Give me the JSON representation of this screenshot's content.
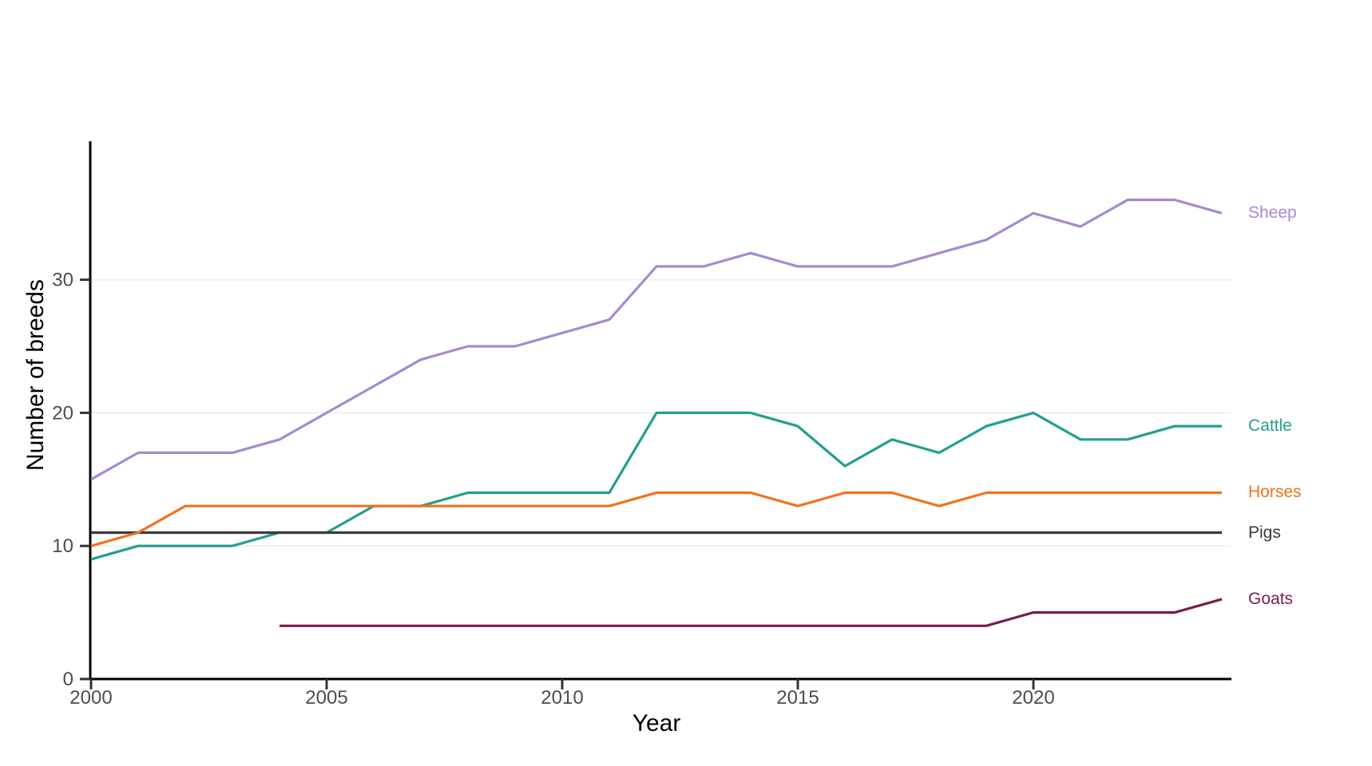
{
  "figure": {
    "background": "#FFFFFF"
  },
  "chart_data": {
    "type": "line",
    "title": "",
    "xlabel": "Year",
    "ylabel": "Number of breeds",
    "x": [
      2000,
      2001,
      2002,
      2003,
      2004,
      2005,
      2006,
      2007,
      2008,
      2009,
      2010,
      2011,
      2012,
      2013,
      2014,
      2015,
      2016,
      2017,
      2018,
      2019,
      2020,
      2021,
      2022,
      2023,
      2024
    ],
    "x_ticks": [
      2000,
      2005,
      2010,
      2015,
      2020
    ],
    "y_ticks": [
      0,
      10,
      20,
      30
    ],
    "y_gridlines": [
      10,
      20,
      30
    ],
    "xlim": [
      2000,
      2024
    ],
    "ylim": [
      0,
      40
    ],
    "grid": "horizontal-only",
    "legend_position": "direct-labels-right",
    "axis_color": "#000000",
    "tick_color": "#333333",
    "tick_label_color": "#4D4D4D",
    "gridline_color": "#EBEBEB",
    "series": [
      {
        "name": "Sheep",
        "color": "#A58AD0",
        "values": [
          15,
          17,
          17,
          17,
          18,
          20,
          22,
          24,
          25,
          25,
          26,
          27,
          31,
          31,
          32,
          31,
          31,
          31,
          32,
          33,
          35,
          34,
          36,
          36,
          35
        ]
      },
      {
        "name": "Cattle",
        "color": "#249E8F",
        "values": [
          9,
          10,
          10,
          10,
          11,
          11,
          13,
          13,
          14,
          14,
          14,
          14,
          20,
          20,
          20,
          19,
          16,
          18,
          17,
          19,
          20,
          18,
          18,
          19,
          19
        ]
      },
      {
        "name": "Pigs",
        "color": "#3B3B3B",
        "values": [
          11,
          11,
          11,
          11,
          11,
          11,
          11,
          11,
          11,
          11,
          11,
          11,
          11,
          11,
          11,
          11,
          11,
          11,
          11,
          11,
          11,
          11,
          11,
          11,
          11
        ]
      },
      {
        "name": "Horses",
        "color": "#F3701E",
        "values": [
          10,
          11,
          13,
          13,
          13,
          13,
          13,
          13,
          13,
          13,
          13,
          13,
          14,
          14,
          14,
          13,
          14,
          14,
          13,
          14,
          14,
          14,
          14,
          14,
          14
        ]
      },
      {
        "name": "Goats",
        "color": "#7A1C4E",
        "values": [
          null,
          null,
          null,
          null,
          4,
          4,
          4,
          4,
          4,
          4,
          4,
          4,
          4,
          4,
          4,
          4,
          4,
          4,
          4,
          4,
          5,
          5,
          5,
          5,
          6
        ]
      }
    ]
  }
}
